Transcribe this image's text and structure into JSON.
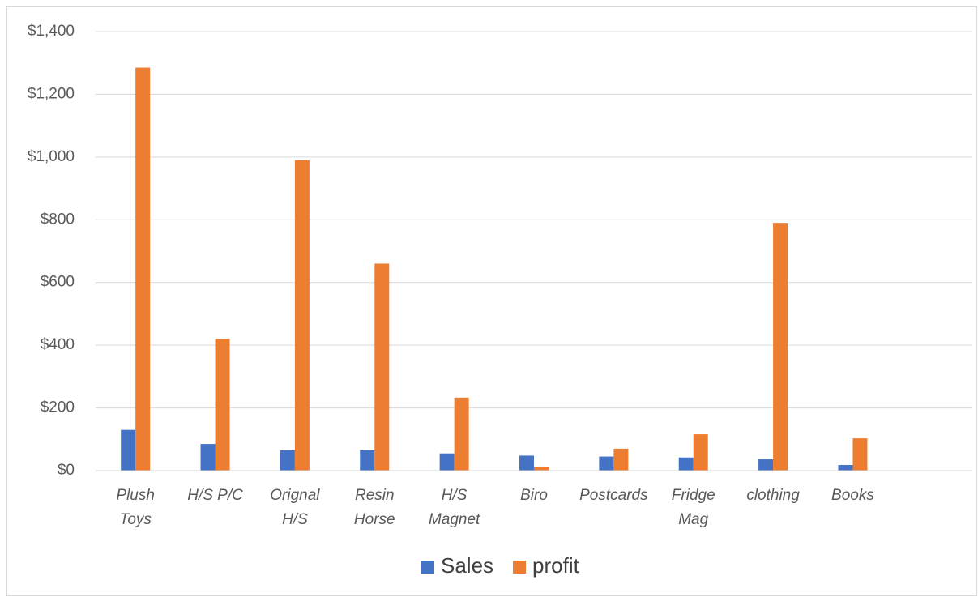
{
  "chart_data": {
    "type": "bar",
    "categories": [
      "Plush Toys",
      "H/S P/C",
      "Orignal H/S",
      "Resin Horse",
      "H/S Magnet",
      "Biro",
      "Postcards",
      "Fridge Mag",
      "clothing",
      "Books",
      null
    ],
    "series": [
      {
        "name": "Sales",
        "color": "#4472c4",
        "values": [
          130,
          85,
          65,
          65,
          55,
          48,
          45,
          42,
          36,
          18,
          null
        ]
      },
      {
        "name": "profit",
        "color": "#ed7d31",
        "values": [
          1285,
          420,
          990,
          660,
          233,
          13,
          70,
          116,
          790,
          103,
          null
        ]
      }
    ],
    "ylim": [
      0,
      1400
    ],
    "yticks": [
      {
        "value": 0,
        "label": "$0"
      },
      {
        "value": 200,
        "label": "$200"
      },
      {
        "value": 400,
        "label": "$400"
      },
      {
        "value": 600,
        "label": "$600"
      },
      {
        "value": 800,
        "label": "$800"
      },
      {
        "value": 1000,
        "label": "$1,000"
      },
      {
        "value": 1200,
        "label": "$1,200"
      },
      {
        "value": 1400,
        "label": "$1,400"
      }
    ],
    "grid": true,
    "legend": "bottom"
  }
}
